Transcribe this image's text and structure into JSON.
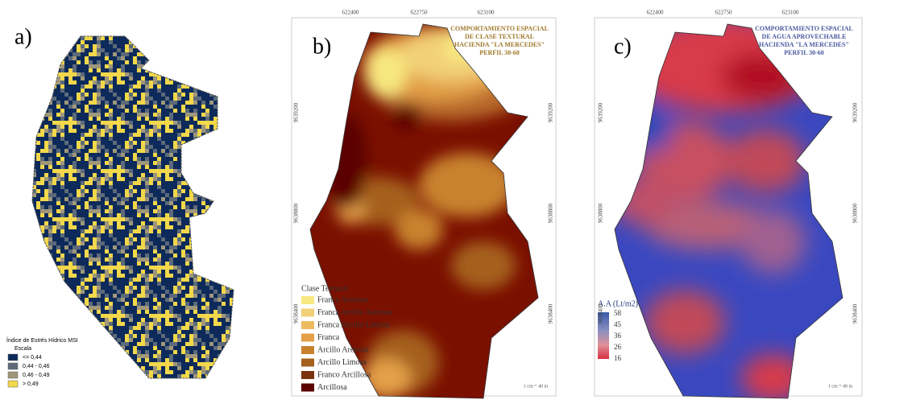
{
  "panel_a": {
    "label": "a)",
    "legend": {
      "title": "Índice de Estrés Hídrico MSI",
      "subtitle": "Escala",
      "items": [
        {
          "label": "<= 0,44",
          "color": "#0d2a5a"
        },
        {
          "label": "0,44 - 0,46",
          "color": "#5c6a7a"
        },
        {
          "label": "0,46 - 0,49",
          "color": "#a0977a"
        },
        {
          "label": "> 0,49",
          "color": "#f2d84a"
        }
      ]
    }
  },
  "panel_b": {
    "label": "b)",
    "title_lines": [
      "COMPORTAMIENTO ESPACIAL",
      "DE CLASE TEXTURAL",
      "HACIENDA \"LA MERCEDES\"",
      "PERFIL 30-60"
    ],
    "x_coords": [
      "622400",
      "622750",
      "623100"
    ],
    "y_coords": [
      "9639200",
      "9638800",
      "9638400"
    ],
    "scale": "1 cm = 40 m",
    "legend": {
      "title": "Clase Textural",
      "items": [
        {
          "label": "Franca Arenosa",
          "color": "#f8e880"
        },
        {
          "label": "Franca Arcillo Arenosa",
          "color": "#f2d078"
        },
        {
          "label": "Franca Arcillo Limosa",
          "color": "#eebc60"
        },
        {
          "label": "Franca",
          "color": "#e3a048"
        },
        {
          "label": "Arcillo Arenosa",
          "color": "#c8822e"
        },
        {
          "label": "Arcillo Limosa",
          "color": "#a5601e"
        },
        {
          "label": "Franco Arcillosa",
          "color": "#7a3410"
        },
        {
          "label": "Arcillosa",
          "color": "#5a0000"
        }
      ]
    }
  },
  "panel_c": {
    "label": "c)",
    "title_lines": [
      "COMPORTAMIENTO ESPACIAL",
      "DE AGUA APROVECHABLE",
      "HACIENDA \"LA MERCEDES\"",
      "PERFIL 30-60"
    ],
    "x_coords": [
      "622400",
      "622750",
      "623100"
    ],
    "y_coords": [
      "9639200",
      "9638800",
      "9638400"
    ],
    "scale": "1 cm = 40 m",
    "legend": {
      "title": "A.A (Lt/m2)",
      "values": [
        58,
        45,
        36,
        26,
        16
      ]
    }
  }
}
